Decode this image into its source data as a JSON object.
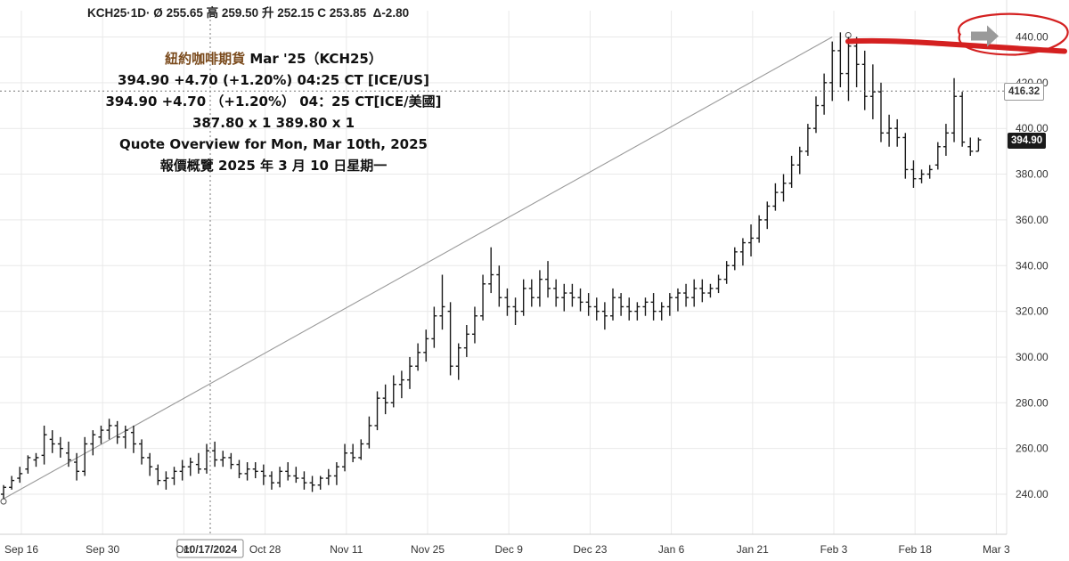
{
  "ticker_line": {
    "symbol": "KCH25",
    "interval": "·1D·",
    "open_label": "Ø",
    "open": "255.65",
    "high_label": "高",
    "high": "259.50",
    "low_label": "升",
    "low": "252.15",
    "close_label": "C",
    "close": "253.85",
    "change": "Δ-2.80"
  },
  "quote_box": {
    "title_cn": "紐約咖啡期貨",
    "title_en": " Mar '25（KCH25）",
    "line1": "394.90 +4.70 (+1.20%) 04:25 CT [ICE/US]",
    "line2": "394.90 +4.70 （+1.20%） 04：25 CT[ICE/美國]",
    "line3": "387.80 x 1 389.80 x 1",
    "line4": "Quote Overview for Mon, Mar 10th, 2025",
    "line5": "報價概覽 2025 年 3 月 10 日星期一"
  },
  "price_tags": {
    "last_price": "394.90",
    "crosshair_price": "416.32",
    "crosshair_date": "10/17/2024"
  },
  "colors": {
    "bars": "#1a1a1a",
    "grid": "#e9e9e9",
    "trendline": "#9a9a9a",
    "annotation_red": "#d42020",
    "arrow_gray": "#9a9a9a",
    "last_price_bg": "#1a1a1a",
    "title_accent": "#7a4a1c"
  },
  "chart_data": {
    "type": "ohlc",
    "ylim": [
      230,
      450
    ],
    "grid": true,
    "y_ticks": [
      "240.00",
      "260.00",
      "280.00",
      "300.00",
      "320.00",
      "340.00",
      "360.00",
      "380.00",
      "400.00",
      "420.00",
      "440.00"
    ],
    "x_tick_labels": [
      "Sep 16",
      "Sep 30",
      "Oct",
      "Oct 28",
      "Nov 11",
      "Nov 25",
      "Dec 9",
      "Dec 23",
      "Jan 6",
      "Jan 21",
      "Feb 3",
      "Feb 18",
      "Mar 3"
    ],
    "x_tick_index": [
      0,
      10,
      20,
      30,
      40,
      50,
      60,
      70,
      80,
      90,
      100,
      110,
      120
    ],
    "start_date": "2024-09-16",
    "ohlc": [
      [
        240,
        244,
        238,
        243
      ],
      [
        243,
        248,
        242,
        246
      ],
      [
        247,
        252,
        245,
        249
      ],
      [
        251,
        257,
        249,
        256
      ],
      [
        255,
        258,
        252,
        256
      ],
      [
        257,
        270,
        253,
        266
      ],
      [
        264,
        268,
        258,
        262
      ],
      [
        262,
        265,
        256,
        260
      ],
      [
        258,
        263,
        252,
        255
      ],
      [
        254,
        258,
        246,
        250
      ],
      [
        250,
        265,
        248,
        262
      ],
      [
        262,
        268,
        257,
        266
      ],
      [
        265,
        270,
        262,
        268
      ],
      [
        268,
        273,
        264,
        270
      ],
      [
        270,
        272,
        262,
        265
      ],
      [
        265,
        270,
        260,
        268
      ],
      [
        267,
        270,
        258,
        262
      ],
      [
        262,
        264,
        253,
        256
      ],
      [
        256,
        258,
        248,
        252
      ],
      [
        251,
        253,
        244,
        246
      ],
      [
        246,
        250,
        242,
        247
      ],
      [
        247,
        252,
        244,
        250
      ],
      [
        250,
        255,
        246,
        252
      ],
      [
        252,
        256,
        248,
        254
      ],
      [
        253,
        258,
        249,
        251
      ],
      [
        251,
        262,
        249,
        259
      ],
      [
        259,
        263,
        252,
        255
      ],
      [
        255,
        259,
        252,
        256
      ],
      [
        256,
        258,
        251,
        253
      ],
      [
        253,
        255,
        247,
        249
      ],
      [
        249,
        254,
        246,
        251
      ],
      [
        251,
        254,
        247,
        250
      ],
      [
        250,
        253,
        244,
        248
      ],
      [
        248,
        250,
        242,
        245
      ],
      [
        245,
        252,
        243,
        250
      ],
      [
        250,
        254,
        246,
        248
      ],
      [
        248,
        252,
        245,
        247
      ],
      [
        247,
        250,
        242,
        245
      ],
      [
        245,
        248,
        241,
        244
      ],
      [
        244,
        248,
        242,
        247
      ],
      [
        247,
        251,
        244,
        248
      ],
      [
        248,
        254,
        244,
        252
      ],
      [
        252,
        262,
        250,
        258
      ],
      [
        258,
        262,
        254,
        256
      ],
      [
        256,
        264,
        255,
        262
      ],
      [
        262,
        274,
        260,
        270
      ],
      [
        270,
        285,
        268,
        282
      ],
      [
        282,
        288,
        275,
        280
      ],
      [
        280,
        292,
        278,
        288
      ],
      [
        288,
        294,
        282,
        290
      ],
      [
        290,
        300,
        286,
        296
      ],
      [
        296,
        306,
        294,
        302
      ],
      [
        302,
        312,
        298,
        308
      ],
      [
        308,
        322,
        304,
        318
      ],
      [
        318,
        336,
        312,
        322
      ],
      [
        320,
        324,
        292,
        296
      ],
      [
        296,
        306,
        290,
        304
      ],
      [
        304,
        314,
        300,
        310
      ],
      [
        310,
        322,
        306,
        318
      ],
      [
        318,
        336,
        316,
        332
      ],
      [
        332,
        348,
        328,
        336
      ],
      [
        336,
        340,
        322,
        326
      ],
      [
        326,
        330,
        318,
        322
      ],
      [
        322,
        326,
        314,
        320
      ],
      [
        320,
        334,
        318,
        330
      ],
      [
        330,
        334,
        322,
        326
      ],
      [
        326,
        338,
        322,
        334
      ],
      [
        334,
        342,
        326,
        330
      ],
      [
        330,
        334,
        322,
        326
      ],
      [
        326,
        332,
        320,
        328
      ],
      [
        328,
        332,
        322,
        326
      ],
      [
        326,
        330,
        320,
        324
      ],
      [
        324,
        328,
        318,
        322
      ],
      [
        322,
        326,
        316,
        320
      ],
      [
        320,
        324,
        312,
        318
      ],
      [
        318,
        330,
        316,
        326
      ],
      [
        326,
        328,
        318,
        322
      ],
      [
        322,
        326,
        316,
        320
      ],
      [
        320,
        324,
        316,
        322
      ],
      [
        322,
        326,
        318,
        324
      ],
      [
        324,
        328,
        316,
        320
      ],
      [
        320,
        324,
        316,
        322
      ],
      [
        322,
        328,
        318,
        326
      ],
      [
        326,
        330,
        320,
        328
      ],
      [
        328,
        332,
        322,
        326
      ],
      [
        326,
        334,
        322,
        330
      ],
      [
        330,
        334,
        324,
        328
      ],
      [
        328,
        332,
        326,
        330
      ],
      [
        330,
        336,
        328,
        334
      ],
      [
        334,
        342,
        332,
        340
      ],
      [
        340,
        348,
        338,
        346
      ],
      [
        346,
        352,
        340,
        350
      ],
      [
        350,
        358,
        344,
        352
      ],
      [
        352,
        362,
        350,
        360
      ],
      [
        360,
        368,
        356,
        366
      ],
      [
        366,
        376,
        364,
        372
      ],
      [
        372,
        380,
        368,
        376
      ],
      [
        376,
        388,
        374,
        384
      ],
      [
        384,
        392,
        380,
        390
      ],
      [
        390,
        402,
        388,
        400
      ],
      [
        400,
        414,
        398,
        410
      ],
      [
        410,
        424,
        406,
        420
      ],
      [
        420,
        438,
        412,
        434
      ],
      [
        434,
        442,
        418,
        424
      ],
      [
        424,
        440,
        412,
        436
      ],
      [
        436,
        440,
        418,
        428
      ],
      [
        428,
        434,
        408,
        414
      ],
      [
        414,
        428,
        404,
        416
      ],
      [
        416,
        420,
        394,
        398
      ],
      [
        398,
        406,
        392,
        400
      ],
      [
        400,
        404,
        392,
        396
      ],
      [
        396,
        398,
        378,
        382
      ],
      [
        382,
        386,
        374,
        378
      ],
      [
        378,
        382,
        376,
        380
      ],
      [
        380,
        384,
        378,
        382
      ],
      [
        384,
        394,
        382,
        392
      ],
      [
        392,
        402,
        388,
        398
      ],
      [
        398,
        422,
        394,
        414
      ],
      [
        414,
        416,
        392,
        394
      ],
      [
        392,
        396,
        388,
        390
      ],
      [
        390,
        396,
        390,
        395
      ]
    ],
    "trendline": {
      "from": {
        "index": 0,
        "price": 238
      },
      "to": {
        "index": 102,
        "price": 440
      }
    },
    "crosshair": {
      "index": 24,
      "price": 416.32,
      "date": "10/17/2024"
    },
    "annotation": {
      "type": "hand-drawn-red",
      "target_price": "440.00"
    }
  }
}
